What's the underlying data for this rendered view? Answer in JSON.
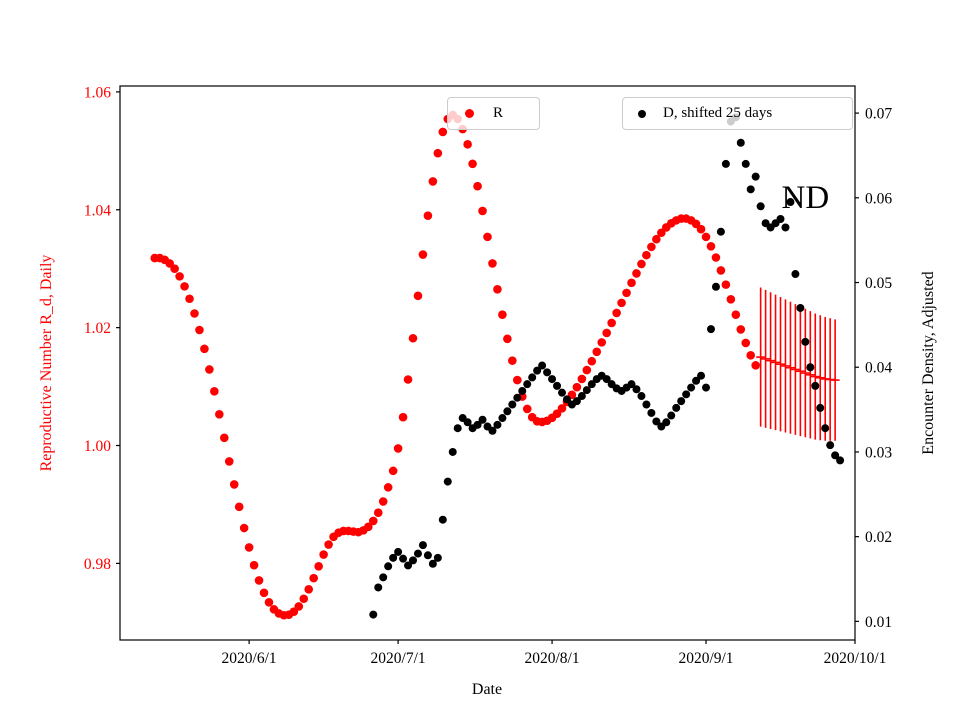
{
  "chart_data": {
    "type": "scatter",
    "title": "",
    "xlabel": "Date",
    "grid": false,
    "x_range": [
      "2020/5/6",
      "2020/10/1"
    ],
    "x_ticks": [
      "2020/6/1",
      "2020/7/1",
      "2020/8/1",
      "2020/9/1",
      "2020/10/1"
    ],
    "left_axis": {
      "label": "Reproductive Number R_d, Daily",
      "color": "#ff0000",
      "range": [
        0.967,
        1.061
      ],
      "ticks": [
        "0.98",
        "1.00",
        "1.02",
        "1.04",
        "1.06"
      ]
    },
    "right_axis": {
      "label": "Encounter Density, Adjusted",
      "color": "#000000",
      "range": [
        0.0078,
        0.0732
      ],
      "ticks": [
        "0.01",
        "0.02",
        "0.03",
        "0.04",
        "0.05",
        "0.06",
        "0.07"
      ]
    },
    "legend": [
      {
        "label": "R",
        "color": "#ff0000",
        "position": "upper center"
      },
      {
        "label": "D, shifted 25 days",
        "color": "#000000",
        "position": "upper right"
      }
    ],
    "series": [
      {
        "id": "r-daily",
        "type": "scatter",
        "axis": "left",
        "color": "#ff0000",
        "marker": "circle",
        "marker_radius": 4.3,
        "start_date": "2020/5/13",
        "cadence_days": 1,
        "values": [
          1.0318,
          1.0318,
          1.0315,
          1.0309,
          1.03,
          1.0287,
          1.027,
          1.0249,
          1.0224,
          1.0196,
          1.0164,
          1.0129,
          1.0092,
          1.0053,
          1.0013,
          0.9973,
          0.9934,
          0.9896,
          0.986,
          0.9827,
          0.9797,
          0.9771,
          0.975,
          0.9734,
          0.9722,
          0.9715,
          0.9712,
          0.9713,
          0.9718,
          0.9727,
          0.974,
          0.9756,
          0.9775,
          0.9795,
          0.9815,
          0.9832,
          0.9845,
          0.9852,
          0.9855,
          0.9855,
          0.9854,
          0.9853,
          0.9856,
          0.9862,
          0.9872,
          0.9886,
          0.9905,
          0.9929,
          0.9957,
          0.9995,
          1.0048,
          1.0112,
          1.0182,
          1.0254,
          1.0324,
          1.039,
          1.0448,
          1.0496,
          1.0532,
          1.0554,
          1.0561,
          1.0554,
          1.0537,
          1.0511,
          1.0478,
          1.044,
          1.0398,
          1.0354,
          1.0309,
          1.0265,
          1.0222,
          1.0181,
          1.0144,
          1.0111,
          1.0083,
          1.0062,
          1.0048,
          1.0041,
          1.004,
          1.0042,
          1.0047,
          1.0054,
          1.0063,
          1.0074,
          1.0086,
          1.0099,
          1.0113,
          1.0128,
          1.0143,
          1.0159,
          1.0175,
          1.0191,
          1.0208,
          1.0225,
          1.0242,
          1.0259,
          1.0276,
          1.0292,
          1.0308,
          1.0323,
          1.0337,
          1.035,
          1.0361,
          1.037,
          1.0377,
          1.0382,
          1.0385,
          1.0385,
          1.0382,
          1.0376,
          1.0367,
          1.0354,
          1.0338,
          1.0319,
          1.0297,
          1.0273,
          1.0248,
          1.0222,
          1.0197,
          1.0174,
          1.0153,
          1.0136
        ]
      },
      {
        "id": "r-errorbar",
        "type": "errorbar",
        "axis": "left",
        "color": "#ff0000",
        "start_date": "2020/9/12",
        "cadence_days": 1,
        "values": [
          1.015,
          1.0147,
          1.0144,
          1.0141,
          1.0138,
          1.0135,
          1.0132,
          1.0129,
          1.0126,
          1.0123,
          1.012,
          1.0117,
          1.0115,
          1.0113,
          1.0112,
          1.0111
        ],
        "yerr": [
          0.0118,
          0.0117,
          0.0116,
          0.0115,
          0.0114,
          0.0113,
          0.0112,
          0.0111,
          0.011,
          0.0109,
          0.0108,
          0.0107,
          0.0106,
          0.0105,
          0.0104,
          0.0103
        ]
      },
      {
        "id": "d-shifted",
        "type": "scatter",
        "axis": "right",
        "color": "#000000",
        "marker": "circle",
        "marker_radius": 4.0,
        "start_date": "2020/6/26",
        "cadence_days": 1,
        "values": [
          0.0108,
          0.014,
          0.0152,
          0.0165,
          0.0175,
          0.0182,
          0.0174,
          0.0166,
          0.0172,
          0.018,
          0.019,
          0.0178,
          0.0168,
          0.0175,
          0.022,
          0.0265,
          0.03,
          0.0328,
          0.034,
          0.0335,
          0.0328,
          0.0332,
          0.0338,
          0.033,
          0.0325,
          0.0332,
          0.034,
          0.0348,
          0.0356,
          0.0364,
          0.0372,
          0.038,
          0.0388,
          0.0396,
          0.0402,
          0.0394,
          0.0386,
          0.0378,
          0.037,
          0.0362,
          0.0356,
          0.036,
          0.0366,
          0.0373,
          0.038,
          0.0386,
          0.039,
          0.0386,
          0.038,
          0.0375,
          0.0372,
          0.0376,
          0.038,
          0.0374,
          0.0366,
          0.0356,
          0.0346,
          0.0336,
          0.033,
          0.0335,
          0.0343,
          0.0352,
          0.036,
          0.0368,
          0.0376,
          0.0384,
          0.039,
          0.0376,
          0.0445,
          0.0495,
          0.056,
          0.064,
          0.069,
          0.0695,
          0.0665,
          0.064,
          0.061,
          0.0625,
          0.059,
          0.057,
          0.0565,
          0.057,
          0.0575,
          0.0565,
          0.0595,
          0.051,
          0.047,
          0.043,
          0.04,
          0.0378,
          0.0352,
          0.0328,
          0.0308,
          0.0296,
          0.029
        ]
      }
    ],
    "annotations": [
      {
        "text": "ND",
        "axis": "right",
        "date": "2020/9/21",
        "value": 0.06,
        "font_px": 33
      }
    ]
  }
}
